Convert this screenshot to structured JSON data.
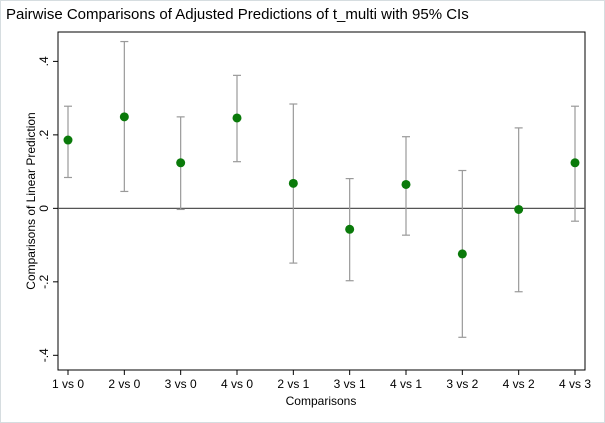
{
  "chart_data": {
    "type": "errorbar-scatter",
    "title": "Pairwise Comparisons of Adjusted Predictions of t_multi with 95% CIs",
    "x_label": "Comparisons",
    "y_label": "Comparisons of Linear Prediction",
    "categories": [
      "1 vs 0",
      "2 vs 0",
      "3 vs 0",
      "4 vs 0",
      "2 vs 1",
      "3 vs 1",
      "4 vs 1",
      "3 vs 2",
      "4 vs 2",
      "4 vs 3"
    ],
    "series": [
      {
        "color": "#0a7a0a",
        "values": [
          0.186,
          0.249,
          0.124,
          0.246,
          0.068,
          -0.057,
          0.065,
          -0.124,
          -0.003,
          0.124
        ],
        "lower": [
          0.084,
          0.046,
          -0.003,
          0.127,
          -0.149,
          -0.197,
          -0.073,
          -0.351,
          -0.227,
          -0.035
        ],
        "upper": [
          0.278,
          0.454,
          0.249,
          0.362,
          0.284,
          0.081,
          0.195,
          0.103,
          0.219,
          0.278
        ]
      }
    ],
    "ci_color": "#9a9a9a",
    "ylim": [
      -0.44,
      0.48
    ],
    "yticks": [
      {
        "value": -0.4,
        "label": "-.4"
      },
      {
        "value": -0.2,
        "label": "-.2"
      },
      0,
      {
        "value": 0.2,
        "label": ".2"
      },
      {
        "value": 0.4,
        "label": ".4"
      }
    ],
    "yline": 0
  }
}
